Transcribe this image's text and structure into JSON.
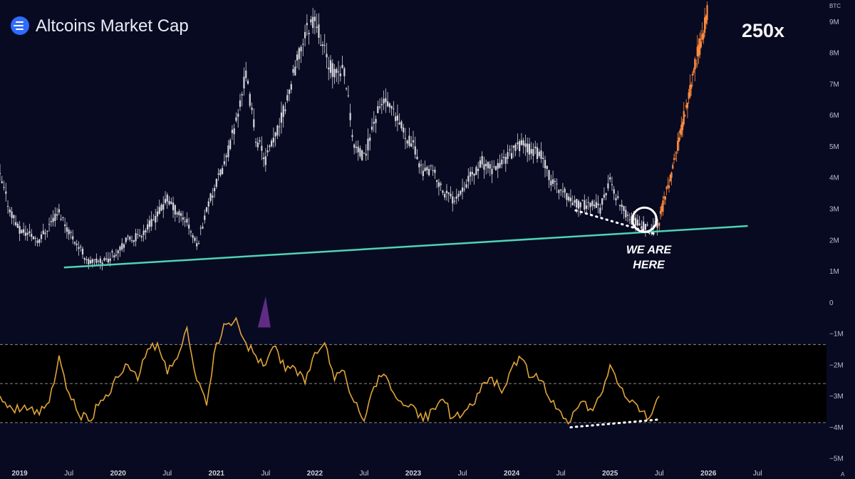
{
  "header": {
    "title": "Altcoins Market Cap",
    "multiplier_label": "250x",
    "unit_label": "BTC",
    "corner_label": "A"
  },
  "annotation": {
    "line1": "WE ARE",
    "line2": "HERE"
  },
  "colors": {
    "background": "#080a22",
    "price_candles": "#d6d6dc",
    "projection": "#ff8a3d",
    "support_line": "#4fd3b4",
    "oscillator": "#e0a43a",
    "oscillator_band": "#000000",
    "overbought_fill": "#6b2f8f",
    "logo": "#2f6bff"
  },
  "chart_data": {
    "type": "line",
    "title": "Altcoins Market Cap",
    "ylabel": "BTC",
    "yaxis": {
      "ticks": [
        "9M",
        "8M",
        "7M",
        "6M",
        "5M",
        "4M",
        "3M",
        "2M",
        "1M",
        "0",
        "−1M",
        "−2M",
        "−3M",
        "−4M",
        "−5M"
      ],
      "values": [
        9,
        8,
        7,
        6,
        5,
        4,
        3,
        2,
        1,
        0,
        -1,
        -2,
        -3,
        -4,
        -5
      ],
      "unit": "M"
    },
    "xaxis": {
      "ticks": [
        "2019",
        "Jul",
        "2020",
        "Jul",
        "2021",
        "Jul",
        "2022",
        "Jul",
        "2023",
        "Jul",
        "2024",
        "Jul",
        "2025",
        "Jul",
        "2026",
        "Jul"
      ],
      "values": [
        2019,
        2019.5,
        2020,
        2020.5,
        2021,
        2021.5,
        2022,
        2022.5,
        2023,
        2023.5,
        2024,
        2024.5,
        2025,
        2025.5,
        2026,
        2026.5
      ]
    },
    "xlim": [
      2018.8,
      2027.2
    ],
    "ylim": [
      -5.2,
      9.6
    ],
    "series": [
      {
        "name": "Altcoins Market Cap",
        "style": "candles",
        "x": [
          2018.8,
          2018.9,
          2019.0,
          2019.1,
          2019.2,
          2019.3,
          2019.4,
          2019.5,
          2019.6,
          2019.7,
          2019.8,
          2019.9,
          2020.0,
          2020.1,
          2020.2,
          2020.3,
          2020.4,
          2020.5,
          2020.6,
          2020.7,
          2020.8,
          2020.9,
          2021.0,
          2021.1,
          2021.2,
          2021.3,
          2021.4,
          2021.5,
          2021.6,
          2021.7,
          2021.8,
          2021.9,
          2022.0,
          2022.1,
          2022.2,
          2022.3,
          2022.4,
          2022.5,
          2022.6,
          2022.7,
          2022.8,
          2022.9,
          2023.0,
          2023.1,
          2023.2,
          2023.3,
          2023.4,
          2023.5,
          2023.6,
          2023.7,
          2023.8,
          2023.9,
          2024.0,
          2024.1,
          2024.2,
          2024.3,
          2024.4,
          2024.5,
          2024.6,
          2024.7,
          2024.8,
          2024.9,
          2025.0,
          2025.1,
          2025.2,
          2025.3,
          2025.4,
          2025.5
        ],
        "values": [
          4.0,
          3.0,
          2.3,
          2.2,
          2.0,
          2.5,
          2.9,
          2.3,
          1.8,
          1.3,
          1.3,
          1.4,
          1.7,
          2.0,
          2.1,
          2.4,
          2.8,
          3.3,
          2.9,
          2.6,
          1.8,
          3.0,
          3.8,
          4.6,
          5.8,
          7.3,
          5.3,
          4.6,
          5.3,
          6.3,
          7.5,
          8.6,
          9.2,
          8.0,
          7.3,
          7.5,
          5.0,
          4.6,
          5.8,
          6.5,
          6.0,
          5.5,
          5.0,
          4.2,
          4.2,
          3.6,
          3.3,
          3.7,
          4.1,
          4.5,
          4.2,
          4.5,
          4.8,
          5.1,
          4.9,
          4.7,
          3.9,
          3.6,
          3.3,
          3.1,
          3.2,
          3.0,
          3.9,
          3.1,
          2.7,
          2.5,
          2.35,
          2.6
        ]
      },
      {
        "name": "Projection",
        "style": "candles",
        "x": [
          2025.5,
          2025.6,
          2025.7,
          2025.8,
          2025.9,
          2026.0
        ],
        "values": [
          2.6,
          3.8,
          5.1,
          6.6,
          8.0,
          9.3
        ]
      },
      {
        "name": "Support trendline",
        "style": "line",
        "x": [
          2019.45,
          2026.4
        ],
        "values": [
          1.12,
          2.45
        ]
      },
      {
        "name": "Local lows divergence",
        "style": "dotted",
        "x": [
          2024.65,
          2025.45
        ],
        "values": [
          2.95,
          2.2
        ]
      },
      {
        "name": "Oscillator",
        "style": "line",
        "x": [
          2018.8,
          2018.9,
          2019.0,
          2019.1,
          2019.2,
          2019.3,
          2019.4,
          2019.5,
          2019.6,
          2019.7,
          2019.8,
          2019.9,
          2020.0,
          2020.1,
          2020.2,
          2020.3,
          2020.4,
          2020.5,
          2020.6,
          2020.7,
          2020.8,
          2020.9,
          2021.0,
          2021.1,
          2021.2,
          2021.3,
          2021.4,
          2021.5,
          2021.6,
          2021.7,
          2021.8,
          2021.9,
          2022.0,
          2022.1,
          2022.2,
          2022.3,
          2022.4,
          2022.5,
          2022.6,
          2022.7,
          2022.8,
          2022.9,
          2023.0,
          2023.1,
          2023.2,
          2023.3,
          2023.4,
          2023.5,
          2023.6,
          2023.7,
          2023.8,
          2023.9,
          2024.0,
          2024.1,
          2024.2,
          2024.3,
          2024.4,
          2024.5,
          2024.6,
          2024.7,
          2024.8,
          2024.9,
          2025.0,
          2025.1,
          2025.2,
          2025.3,
          2025.4,
          2025.5
        ],
        "values": [
          -3.0,
          -3.3,
          -3.5,
          -3.4,
          -3.6,
          -3.2,
          -1.7,
          -2.9,
          -3.6,
          -3.8,
          -3.3,
          -3.0,
          -2.4,
          -2.0,
          -2.5,
          -1.5,
          -1.3,
          -2.3,
          -1.8,
          -0.8,
          -2.5,
          -3.3,
          -1.3,
          -0.7,
          -0.5,
          -1.3,
          -1.7,
          -2.0,
          -1.4,
          -2.2,
          -2.1,
          -2.6,
          -1.6,
          -1.3,
          -2.5,
          -2.2,
          -3.2,
          -3.8,
          -2.7,
          -2.3,
          -2.9,
          -3.3,
          -3.3,
          -3.8,
          -3.4,
          -3.1,
          -3.7,
          -3.6,
          -3.3,
          -2.6,
          -2.4,
          -2.9,
          -2.1,
          -1.8,
          -2.4,
          -2.5,
          -3.2,
          -3.5,
          -3.8,
          -3.2,
          -3.4,
          -3.0,
          -2.0,
          -2.7,
          -3.2,
          -3.5,
          -3.7,
          -3.0
        ]
      },
      {
        "name": "Oscillator lows divergence",
        "style": "dotted",
        "x": [
          2024.6,
          2025.5
        ],
        "values": [
          -4.0,
          -3.75
        ]
      }
    ],
    "oscillator_band": [
      -3.85,
      -1.35
    ],
    "oscillator_midline": -2.6,
    "overbought_peak_x": 2021.5,
    "highlight_x": 2025.35,
    "annotations": [
      "250x",
      "WE ARE HERE"
    ]
  }
}
